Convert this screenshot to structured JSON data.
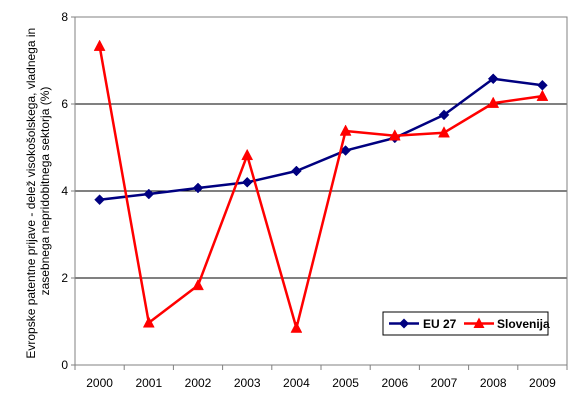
{
  "chart_data": {
    "type": "line",
    "title": "",
    "xlabel": "",
    "ylabel": [
      "Evropske patentne prijave - delež visokošolskega, vladnega in",
      "zasebnega nepridobitnega sektorja (%)"
    ],
    "x": [
      "2000",
      "2001",
      "2002",
      "2003",
      "2004",
      "2005",
      "2006",
      "2007",
      "2008",
      "2009"
    ],
    "ylim": [
      0,
      8
    ],
    "yticks": [
      "0",
      "2",
      "4",
      "6",
      "8"
    ],
    "grid": "horizontal",
    "legend_position": "bottom-right",
    "series": [
      {
        "name": "EU 27",
        "color": "#000080",
        "marker": "diamond",
        "values": [
          3.8,
          3.93,
          4.07,
          4.2,
          4.46,
          4.93,
          5.22,
          5.75,
          6.58,
          6.43
        ]
      },
      {
        "name": "Slovenija",
        "color": "#FF0000",
        "marker": "triangle",
        "values": [
          7.33,
          0.97,
          1.83,
          4.82,
          0.85,
          5.38,
          5.27,
          5.34,
          6.02,
          6.18
        ]
      }
    ]
  }
}
